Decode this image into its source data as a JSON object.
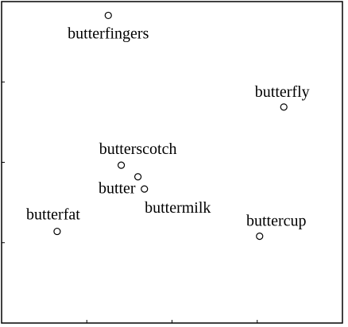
{
  "chart_data": {
    "type": "scatter",
    "title": "",
    "xlabel": "",
    "ylabel": "",
    "xlim": [
      0,
      100
    ],
    "ylim": [
      0,
      100
    ],
    "grid": false,
    "legend": "none",
    "marker_color": "#000000",
    "points": [
      {
        "label": "butterfingers",
        "x": 31.3,
        "y": 95.7
      },
      {
        "label": "butterfly",
        "x": 82.8,
        "y": 67.2
      },
      {
        "label": "butterscotch",
        "x": 35.1,
        "y": 49.1
      },
      {
        "label": "butter",
        "x": 40.0,
        "y": 45.5
      },
      {
        "label": "buttermilk",
        "x": 41.9,
        "y": 41.7
      },
      {
        "label": "butterfat",
        "x": 16.3,
        "y": 28.5
      },
      {
        "label": "buttercup",
        "x": 75.7,
        "y": 27.0
      }
    ]
  }
}
